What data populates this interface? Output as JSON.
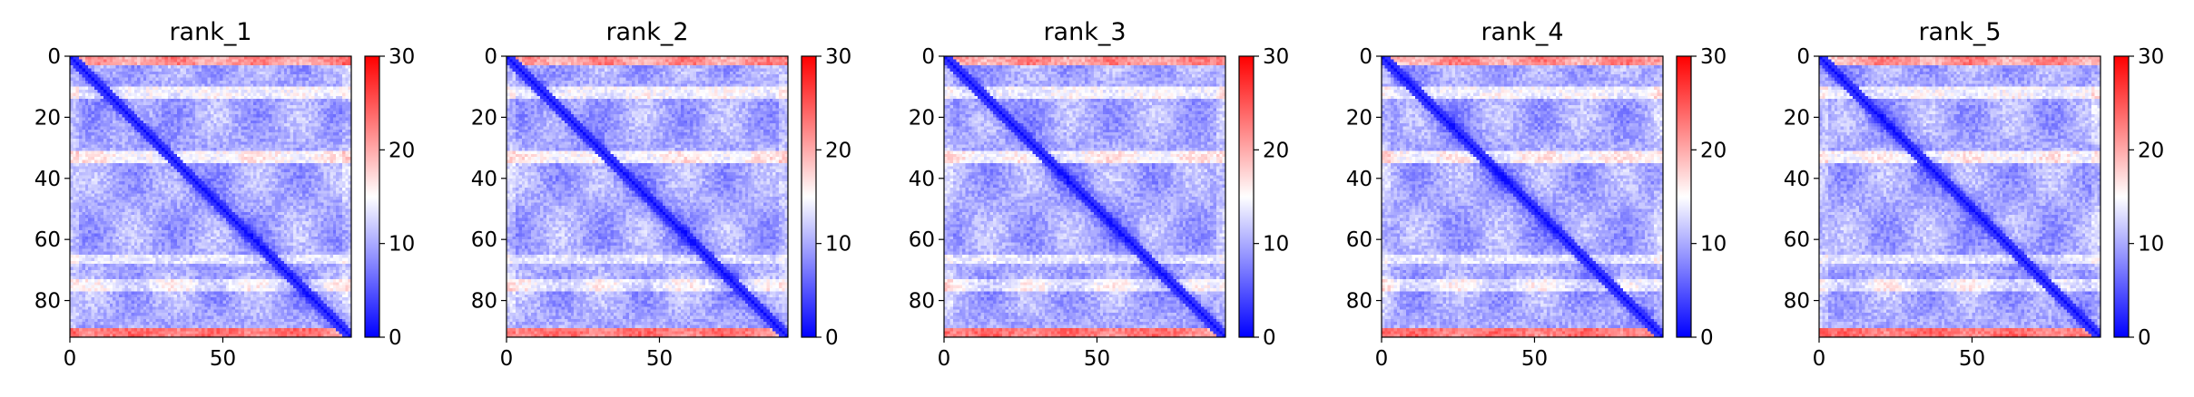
{
  "chart_data": [
    {
      "type": "heatmap",
      "title": "rank_1",
      "n": 92,
      "xticks": [
        0,
        50
      ],
      "yticks": [
        0,
        20,
        40,
        60,
        80
      ],
      "colorbar": {
        "min": 0,
        "max": 30,
        "ticks": [
          0,
          10,
          20,
          30
        ],
        "colormap": [
          "#0000ff",
          "#ffffff",
          "#ff0000"
        ]
      },
      "variant": 0
    },
    {
      "type": "heatmap",
      "title": "rank_2",
      "n": 92,
      "xticks": [
        0,
        50
      ],
      "yticks": [
        0,
        20,
        40,
        60,
        80
      ],
      "colorbar": {
        "min": 0,
        "max": 30,
        "ticks": [
          0,
          10,
          20,
          30
        ],
        "colormap": [
          "#0000ff",
          "#ffffff",
          "#ff0000"
        ]
      },
      "variant": 1
    },
    {
      "type": "heatmap",
      "title": "rank_3",
      "n": 92,
      "xticks": [
        0,
        50
      ],
      "yticks": [
        0,
        20,
        40,
        60,
        80
      ],
      "colorbar": {
        "min": 0,
        "max": 30,
        "ticks": [
          0,
          10,
          20,
          30
        ],
        "colormap": [
          "#0000ff",
          "#ffffff",
          "#ff0000"
        ]
      },
      "variant": 2
    },
    {
      "type": "heatmap",
      "title": "rank_4",
      "n": 92,
      "xticks": [
        0,
        50
      ],
      "yticks": [
        0,
        20,
        40,
        60,
        80
      ],
      "colorbar": {
        "min": 0,
        "max": 30,
        "ticks": [
          0,
          10,
          20,
          30
        ],
        "colormap": [
          "#0000ff",
          "#ffffff",
          "#ff0000"
        ]
      },
      "variant": 3
    },
    {
      "type": "heatmap",
      "title": "rank_5",
      "n": 92,
      "xticks": [
        0,
        50
      ],
      "yticks": [
        0,
        20,
        40,
        60,
        80
      ],
      "colorbar": {
        "min": 0,
        "max": 30,
        "ticks": [
          0,
          10,
          20,
          30
        ],
        "colormap": [
          "#0000ff",
          "#ffffff",
          "#ff0000"
        ]
      },
      "variant": 4
    }
  ]
}
